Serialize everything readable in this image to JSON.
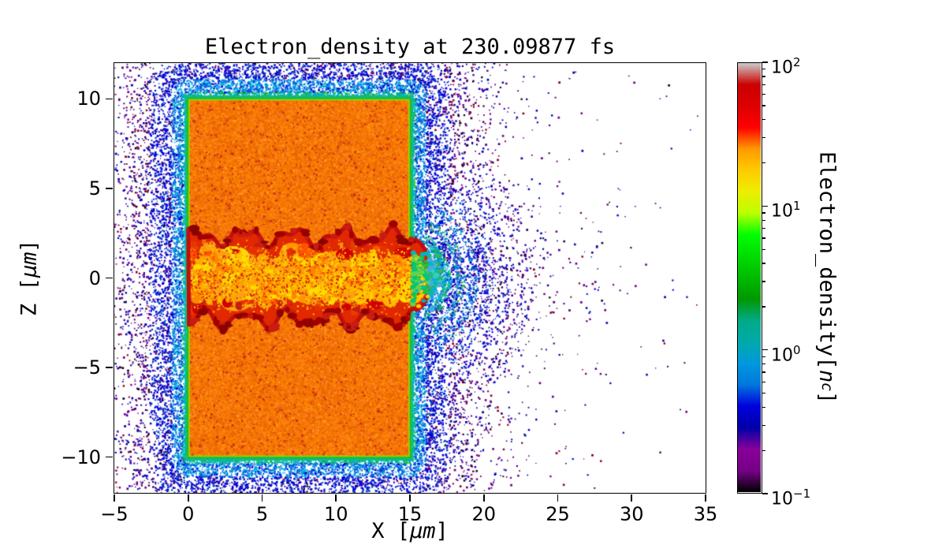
{
  "chart_data": {
    "type": "heatmap",
    "title": "Electron_density at 230.09877 fs",
    "xlabel": "X [μm]",
    "ylabel": "Z [μm]",
    "colorbar_label": "Electron_density[nc]",
    "x_range": [
      -5,
      35
    ],
    "z_range": [
      -12,
      12
    ],
    "x_ticks": [
      -5,
      0,
      5,
      10,
      15,
      20,
      25,
      30,
      35
    ],
    "x_tick_labels": [
      "−5",
      "0",
      "5",
      "10",
      "15",
      "20",
      "25",
      "30",
      "35"
    ],
    "z_ticks": [
      -10,
      -5,
      0,
      5,
      10
    ],
    "z_tick_labels": [
      "−10",
      "−5",
      "0",
      "5",
      "10"
    ],
    "grid": false,
    "color_scale": {
      "type": "log",
      "min": 0.1,
      "max": 100,
      "unit": "n_c",
      "colormap": "nipy_spectral",
      "stops": [
        "#000000",
        "#770088",
        "#880099",
        "#0000aa",
        "#0000dd",
        "#0077dd",
        "#0099dd",
        "#00aaaa",
        "#00aa88",
        "#009900",
        "#00bb00",
        "#00dd00",
        "#00ff00",
        "#bbff00",
        "#eeee00",
        "#ffcc00",
        "#ff9900",
        "#ff0000",
        "#dd0000",
        "#cc0000",
        "#cccccc"
      ],
      "tick_values": [
        0.1,
        1,
        10,
        100
      ],
      "tick_labels": [
        "10⁻¹",
        "10⁰",
        "10¹",
        "10²"
      ]
    },
    "features": {
      "target_slab": {
        "x_um": [
          0,
          15
        ],
        "z_um": [
          -10,
          10
        ],
        "density_nc_approx": 30,
        "appearance": "solid orange block with fine red-orange noise"
      },
      "heated_channel": {
        "x_um": [
          0,
          15.5
        ],
        "z_um": [
          -2.5,
          2.5
        ],
        "density_nc_core": 13,
        "density_nc_rim": 50,
        "appearance": "turbulent yellow-orange core with wavy dark-red compressed rims and vertical striations"
      },
      "plasma_edge": {
        "density_nc_approx": 1,
        "appearance": "thin lime/green/teal boundary layer around slab"
      },
      "blowoff_halo": {
        "extent": "dense blue speckle ring around slab, arcs out to x≈23 on right near z=0, sparse blue/purple dots over whole domain",
        "density_nc_range": [
          0.1,
          1
        ]
      },
      "channel_exit_plume": {
        "x_um": [
          15,
          19
        ],
        "appearance": "green/cyan turbulent wisps and faint concentric arcs centred on channel exit"
      }
    },
    "render": {
      "seed": 1337,
      "background": "#ffffff",
      "slab": {
        "x0": 0,
        "x1": 15,
        "z0": -10,
        "z1": 10,
        "base_color": "#f87a05",
        "noise_count": 26000,
        "noise_palette": [
          "#ff8c00",
          "#f07000",
          "#e86000",
          "#fb8b24",
          "#ef6c10",
          "#e55d0a"
        ],
        "fleck_count": 1600,
        "fleck_palette": [
          "#d4480f",
          "#c43010",
          "#ff9e1b",
          "#cc2a10"
        ]
      },
      "edge": {
        "outer": "#00b4c8",
        "mid": "#1cbe2e",
        "inner": "#97d700"
      },
      "halo": {
        "attempts": 125000,
        "scale": 1.6,
        "strength": 1.15,
        "base": 0.045,
        "far_scale": 4.6,
        "edge_palette": [
          "#12b41c",
          "#00c878",
          "#00b4c8",
          "#33cc33",
          "#00a0c8"
        ],
        "near_palette": [
          "#0088e0",
          "#0066dd",
          "#00a0e6",
          "#1550e6",
          "#00b4d8"
        ],
        "mid_palette": [
          "#0000e6",
          "#0022cc",
          "#2200bb",
          "#0044cc",
          "#0000cc"
        ],
        "far_palette": [
          "#0000aa",
          "#0000cc",
          "#3300aa",
          "#770088",
          "#770088",
          "#550077",
          "#0000bb",
          "#880022",
          "#20002a"
        ]
      },
      "arcs": {
        "cx": 15.2,
        "cz": 0,
        "rings": [
          {
            "r": 2.3,
            "width": 0.5,
            "half_angle": 1.25,
            "dots": 160,
            "palette": [
              "#00b4c8",
              "#00c878",
              "#20b830"
            ]
          },
          {
            "r": 3.2,
            "width": 0.6,
            "half_angle": 1.2,
            "dots": 170,
            "palette": [
              "#0090e0",
              "#00a8d8",
              "#30b060"
            ]
          },
          {
            "r": 4.1,
            "width": 0.7,
            "half_angle": 1.15,
            "dots": 190,
            "palette": [
              "#0055dd",
              "#0077dd",
              "#0099d0"
            ]
          },
          {
            "r": 5.1,
            "width": 0.8,
            "half_angle": 1.1,
            "dots": 190,
            "palette": [
              "#0033dd",
              "#0055dd",
              "#0000ee"
            ]
          },
          {
            "r": 6.3,
            "width": 0.9,
            "half_angle": 1.0,
            "dots": 170,
            "palette": [
              "#0000dd",
              "#0022cc",
              "#3300bb"
            ]
          },
          {
            "r": 7.5,
            "width": 1.1,
            "half_angle": 0.95,
            "dots": 150,
            "palette": [
              "#0000bb",
              "#330099",
              "#770088"
            ]
          }
        ]
      },
      "channel": {
        "x0": 0,
        "x1": 15.45,
        "hw": 2.3,
        "a1": 0.38,
        "f1": 1.9,
        "p1": 0.6,
        "a2": 0.22,
        "f2": 4.1,
        "p2": 1.3,
        "f3": 2.2,
        "p3": 2.4,
        "f4": 3.6,
        "p4": 0.2,
        "tip": 0.9,
        "base_color": "#e12800",
        "core_count": 80,
        "core_palette": [
          "#ffb703",
          "#ffc300",
          "#fca311",
          "#ff9500",
          "#ffd60a"
        ],
        "cols": 19,
        "column_palette": [
          "#ffcf20",
          "#ffb000",
          "#ff9000",
          "#e84b00"
        ],
        "blob_count": 380,
        "blob_core_palette": [
          "#ffc300",
          "#ffdd00",
          "#fca311",
          "#ff8500",
          "#ffae00"
        ],
        "blob_rim_palette": [
          "#e63000",
          "#d00000",
          "#ff5400",
          "#c81d11"
        ],
        "speck_count": 2800,
        "speck_palette": [
          "#ffdb00",
          "#ff9500",
          "#e32f00",
          "#c81d11",
          "#ffc300"
        ],
        "rim_color": "#c00d10",
        "rim_blob_count": 150,
        "rim_blob_palette": [
          "#a00000",
          "#8a0303",
          "#c81d11"
        ]
      },
      "tip": {
        "cx": 15.35,
        "count": 300,
        "near_palette": [
          "#20c040",
          "#00c878",
          "#63d44a",
          "#ffd000",
          "#00b4c8"
        ],
        "far_palette": [
          "#00b4d8",
          "#35d0ba",
          "#2bb673",
          "#49a8e8"
        ],
        "arcs": [
          {
            "r": 1.5,
            "lw": 2.5,
            "color": "#00c896"
          },
          {
            "r": 2.1,
            "lw": 2.2,
            "color": "#00b0d0"
          },
          {
            "r": 2.9,
            "lw": 2.0,
            "color": "#3f9fd8"
          }
        ]
      }
    }
  },
  "axes": {
    "xlabel_pre": "X [",
    "xlabel_italic": "μm",
    "xlabel_post": "]",
    "ylabel_pre": "Z [",
    "ylabel_italic": "μm",
    "ylabel_post": "]"
  },
  "colorbar": {
    "label_pre": "Electron_density[",
    "label_italic": "n",
    "label_sub": "c",
    "label_post": "]",
    "ticks": [
      {
        "base": "10",
        "exp": "2",
        "value": 100
      },
      {
        "base": "10",
        "exp": "1",
        "value": 10
      },
      {
        "base": "10",
        "exp": "0",
        "value": 1
      },
      {
        "base": "10",
        "exp": "−1",
        "value": 0.1
      }
    ],
    "minor_values": [
      0.2,
      0.3,
      0.4,
      0.5,
      0.6,
      0.7,
      0.8,
      0.9,
      2,
      3,
      4,
      5,
      6,
      7,
      8,
      9,
      20,
      30,
      40,
      50,
      60,
      70,
      80,
      90
    ]
  }
}
